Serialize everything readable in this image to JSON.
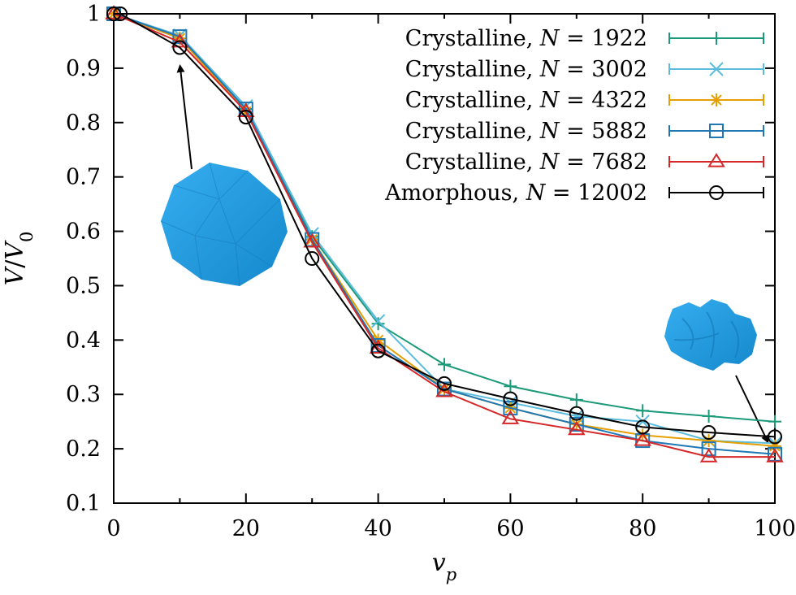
{
  "chart_data": {
    "type": "line",
    "xlabel_main": "v",
    "xlabel_sub": "p",
    "ylabel_main": "V",
    "ylabel_sep": "/",
    "ylabel_main2": "V",
    "ylabel_sub": "0",
    "xlim": [
      0,
      100
    ],
    "ylim": [
      0.1,
      1.0
    ],
    "xticks": [
      0,
      20,
      40,
      60,
      80,
      100
    ],
    "xtick_labels": [
      "0",
      "20",
      "40",
      "60",
      "80",
      "100"
    ],
    "yticks": [
      0.1,
      0.2,
      0.3,
      0.4,
      0.5,
      0.6,
      0.7,
      0.8,
      0.9,
      1.0
    ],
    "ytick_labels": [
      "0.1",
      "0.2",
      "0.3",
      "0.4",
      "0.5",
      "0.6",
      "0.7",
      "0.8",
      "0.9",
      "1"
    ],
    "legend_position": "top-right",
    "grid": false,
    "series": [
      {
        "prefix": "Crystalline, ",
        "var": "N",
        "eq": " = ",
        "num": "1922",
        "color": "#1a9a78",
        "marker": "plus",
        "x": [
          0,
          10,
          20,
          30,
          40,
          50,
          60,
          70,
          80,
          90,
          100
        ],
        "y": [
          1.0,
          0.955,
          0.825,
          0.59,
          0.43,
          0.355,
          0.315,
          0.29,
          0.27,
          0.26,
          0.25
        ]
      },
      {
        "prefix": "Crystalline, ",
        "var": "N",
        "eq": " = ",
        "num": "3002",
        "color": "#5bbcde",
        "marker": "x",
        "x": [
          0,
          10,
          20,
          30,
          40,
          50,
          60,
          70,
          80,
          90,
          100
        ],
        "y": [
          1.0,
          0.96,
          0.83,
          0.595,
          0.435,
          0.31,
          0.285,
          0.26,
          0.25,
          0.215,
          0.21
        ]
      },
      {
        "prefix": "Crystalline, ",
        "var": "N",
        "eq": " = ",
        "num": "4322",
        "color": "#e69f00",
        "marker": "star",
        "x": [
          0,
          10,
          20,
          30,
          40,
          50,
          60,
          70,
          80,
          90,
          100
        ],
        "y": [
          1.0,
          0.955,
          0.82,
          0.585,
          0.4,
          0.31,
          0.275,
          0.245,
          0.225,
          0.215,
          0.205
        ]
      },
      {
        "prefix": "Crystalline, ",
        "var": "N",
        "eq": " = ",
        "num": "5882",
        "color": "#1f77b4",
        "marker": "square",
        "x": [
          0,
          10,
          20,
          30,
          40,
          50,
          60,
          70,
          80,
          90,
          100
        ],
        "y": [
          1.0,
          0.958,
          0.825,
          0.585,
          0.39,
          0.31,
          0.275,
          0.245,
          0.215,
          0.2,
          0.19
        ]
      },
      {
        "prefix": "Crystalline, ",
        "var": "N",
        "eq": " = ",
        "num": "7682",
        "color": "#d62728",
        "marker": "triangle",
        "x": [
          0,
          10,
          20,
          30,
          40,
          50,
          60,
          70,
          80,
          90,
          100
        ],
        "y": [
          1.0,
          0.948,
          0.82,
          0.58,
          0.385,
          0.305,
          0.255,
          0.235,
          0.215,
          0.185,
          0.185
        ]
      },
      {
        "prefix": "Amorphous, ",
        "var": "N",
        "eq": " = ",
        "num": "12002",
        "color": "#000000",
        "marker": "circle",
        "x": [
          0,
          1,
          10,
          20,
          30,
          40,
          50,
          60,
          70,
          80,
          90,
          100
        ],
        "y": [
          1.0,
          1.0,
          0.938,
          0.81,
          0.55,
          0.38,
          0.32,
          0.292,
          0.265,
          0.24,
          0.23,
          0.222
        ]
      }
    ]
  }
}
